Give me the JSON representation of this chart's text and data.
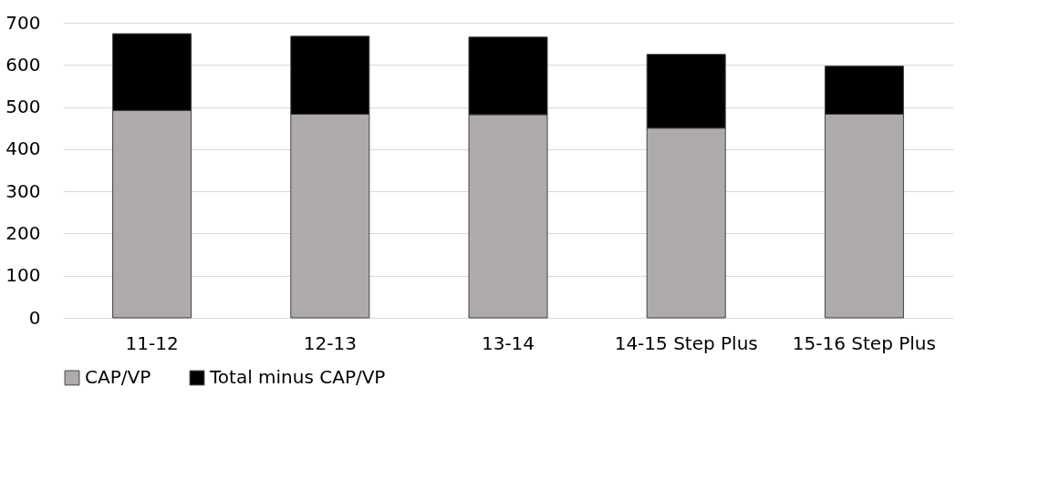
{
  "chart_data": {
    "type": "bar",
    "stacked": true,
    "categories": [
      "11-12",
      "12-13",
      "13-14",
      "14-15 Step Plus",
      "15-16 Step Plus"
    ],
    "series": [
      {
        "name": "CAP/VP",
        "color": "#afabab",
        "values": [
          492,
          483,
          482,
          450,
          483
        ]
      },
      {
        "name": "Total minus CAP/VP",
        "color": "#000000",
        "values": [
          182,
          185,
          184,
          175,
          114
        ]
      }
    ],
    "ylim": [
      0,
      700
    ],
    "yticks": [
      0,
      100,
      200,
      300,
      400,
      500,
      600,
      700
    ],
    "grid": "y",
    "legend": "bottom"
  }
}
